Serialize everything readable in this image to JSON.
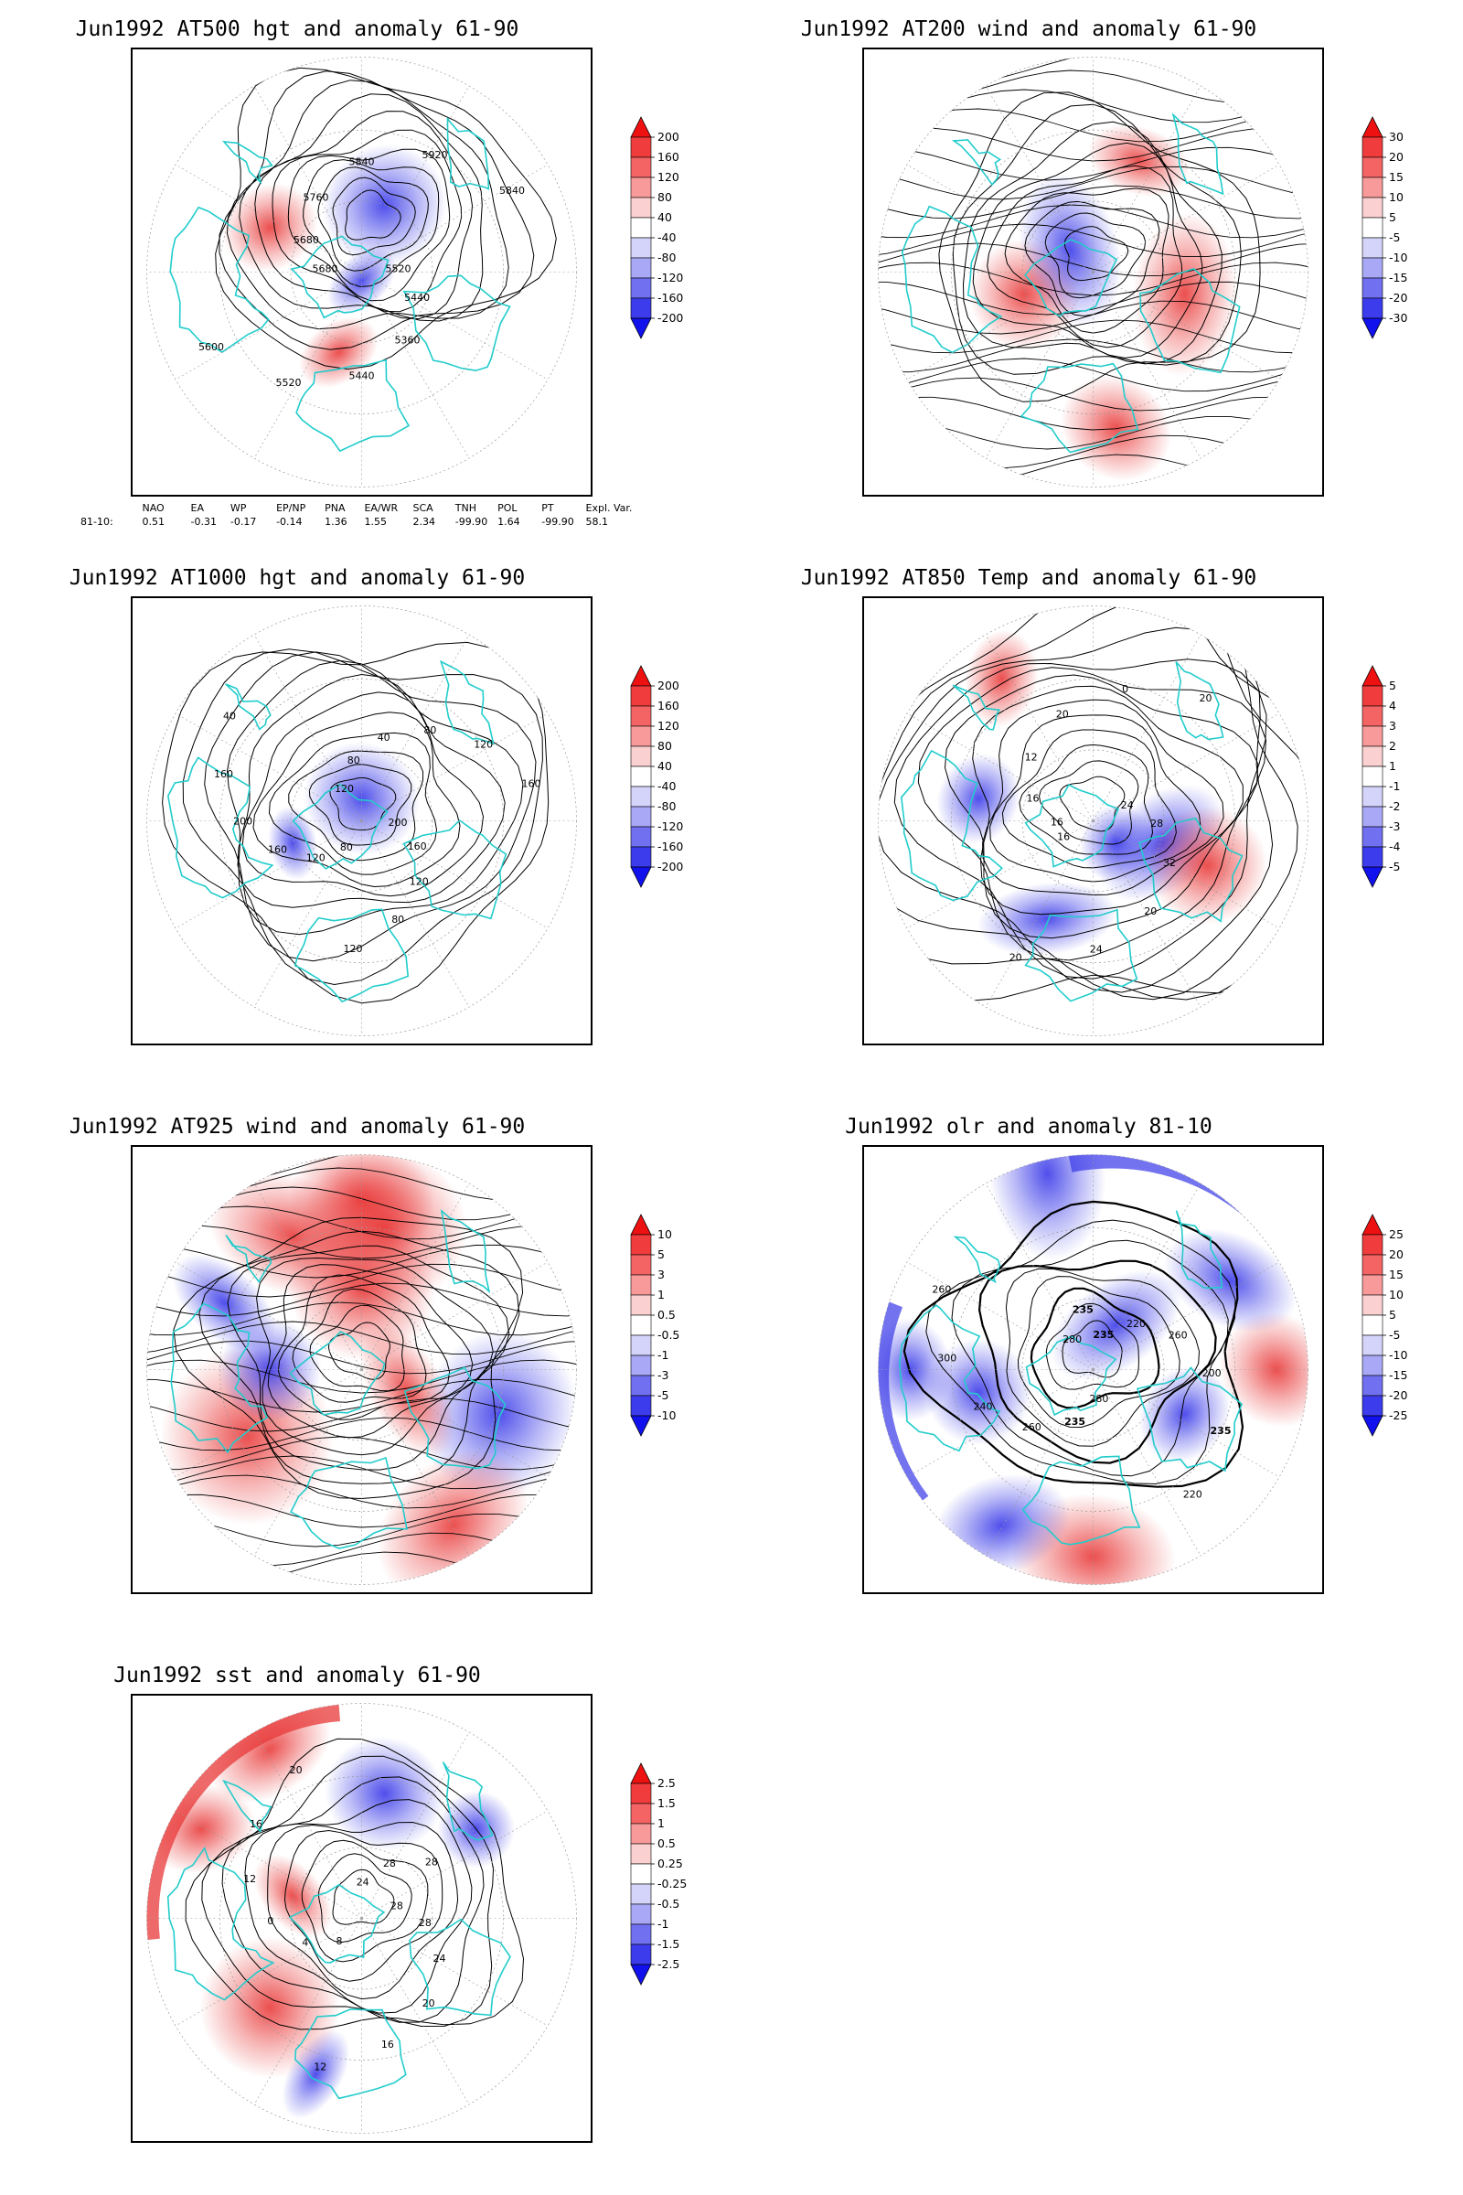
{
  "panels": [
    {
      "title": "Jun1992 AT500 hgt and anomaly 61-90",
      "colorbar": [
        "200",
        "160",
        "120",
        "80",
        "40",
        "-40",
        "-80",
        "-120",
        "-160",
        "-200"
      ],
      "contour_labels": [
        "5520",
        "5440",
        "5360",
        "5440",
        "5520",
        "5600",
        "5680",
        "5680",
        "5760",
        "5840",
        "5920",
        "5840"
      ]
    },
    {
      "title": "Jun1992 AT200 wind and anomaly 61-90",
      "colorbar": [
        "30",
        "20",
        "15",
        "10",
        "5",
        "-5",
        "-10",
        "-15",
        "-20",
        "-30"
      ],
      "contour_labels": []
    },
    {
      "title": "Jun1992 AT1000 hgt and anomaly 61-90",
      "colorbar": [
        "200",
        "160",
        "120",
        "80",
        "40",
        "-40",
        "-80",
        "-120",
        "-160",
        "-200"
      ],
      "contour_labels": [
        "80",
        "120",
        "160",
        "200",
        "160",
        "40",
        "120",
        "80",
        "40",
        "80",
        "120",
        "160",
        "200",
        "160",
        "120",
        "80",
        "120"
      ]
    },
    {
      "title": "Jun1992 AT850 Temp and anomaly 61-90",
      "colorbar": [
        "5",
        "4",
        "3",
        "2",
        "1",
        "-1",
        "-2",
        "-3",
        "-4",
        "-5"
      ],
      "contour_labels": [
        "16",
        "16",
        "12",
        "20",
        "0",
        "20",
        "24",
        "28",
        "32",
        "20",
        "24",
        "20",
        "16"
      ]
    },
    {
      "title": "Jun1992 AT925 wind and anomaly 61-90",
      "colorbar": [
        "10",
        "5",
        "3",
        "1",
        "0.5",
        "-0.5",
        "-1",
        "-3",
        "-5",
        "-10"
      ],
      "contour_labels": []
    },
    {
      "title": "Jun1992 olr and anomaly 81-10",
      "colorbar": [
        "25",
        "20",
        "15",
        "10",
        "5",
        "-5",
        "-10",
        "-15",
        "-20",
        "-25"
      ],
      "contour_labels": [
        "235",
        "220",
        "260",
        "200",
        "235",
        "220",
        "280",
        "235",
        "260",
        "240",
        "300",
        "260",
        "280",
        "235"
      ]
    },
    {
      "title": "Jun1992 sst and anomaly 61-90",
      "colorbar": [
        "2.5",
        "1.5",
        "1",
        "0.5",
        "0.25",
        "-0.25",
        "-0.5",
        "-1",
        "-1.5",
        "-2.5"
      ],
      "contour_labels": [
        "28",
        "28",
        "24",
        "20",
        "16",
        "12",
        "8",
        "4",
        "0",
        "12",
        "16",
        "20",
        "24",
        "28",
        "28"
      ]
    }
  ],
  "teleconnection": {
    "headers": [
      "NAO",
      "EA",
      "WP",
      "EP/NP",
      "PNA",
      "EA/WR",
      "SCA",
      "TNH",
      "POL",
      "PT",
      "Expl. Var."
    ],
    "row_label": "81-10:",
    "values": [
      "0.51",
      "-0.31",
      "-0.17",
      "-0.14",
      "1.36",
      "1.55",
      "2.34",
      "-99.90",
      "1.64",
      "-99.90",
      "58.1"
    ]
  },
  "colors": {
    "coastline": "#22cccc",
    "contour": "#000000",
    "cb_scale": [
      "#ee1111",
      "#f03c3c",
      "#f46464",
      "#f89a9a",
      "#fbd0d0",
      "#ffffff",
      "#d4d4fb",
      "#a8a8f6",
      "#7070f0",
      "#3c3cec",
      "#1111ee"
    ]
  }
}
